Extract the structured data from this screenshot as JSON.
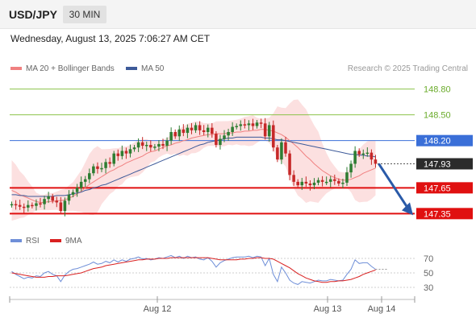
{
  "header": {
    "pair": "USD/JPY",
    "timeframe": "30 MIN",
    "datetime": "Wednesday, August 13, 2025 7:06:27 AM CET",
    "source": "Research © 2025 Trading Central"
  },
  "legend": {
    "ma20": "MA 20 + Bollinger Bands",
    "ma50": "MA 50",
    "rsi": "RSI",
    "rsi_ma": "9MA"
  },
  "colors": {
    "candle_up": "#2e7d32",
    "candle_down": "#c62828",
    "bollinger_fill": "#fbd5d5",
    "ma20": "#f08080",
    "ma50": "#3d5a99",
    "resistance": "#8bc34a",
    "pivot": "#3a6fd8",
    "support": "#e01010",
    "price_tag": "#2b2b2b",
    "forecast_arrow": "#2a5aa8",
    "rsi": "#6f8fd8",
    "rsi_ma": "#d92020"
  },
  "chart_data": [
    {
      "type": "candlestick",
      "ylim": [
        147.25,
        148.9
      ],
      "x_labels": [
        "Aug 12",
        "Aug 13",
        "Aug 14"
      ],
      "levels": [
        {
          "label": "148.80",
          "value": 148.8,
          "kind": "resistance"
        },
        {
          "label": "148.50",
          "value": 148.5,
          "kind": "resistance"
        },
        {
          "label": "148.20",
          "value": 148.2,
          "kind": "pivot"
        },
        {
          "label": "147.93",
          "value": 147.93,
          "kind": "last_price"
        },
        {
          "label": "147.65",
          "value": 147.65,
          "kind": "support"
        },
        {
          "label": "147.35",
          "value": 147.35,
          "kind": "support"
        }
      ],
      "forecast_target": 147.35,
      "close": [
        147.46,
        147.45,
        147.43,
        147.42,
        147.45,
        147.44,
        147.47,
        147.46,
        147.52,
        147.55,
        147.5,
        147.48,
        147.38,
        147.5,
        147.57,
        147.6,
        147.65,
        147.72,
        147.75,
        147.82,
        147.9,
        147.87,
        147.88,
        147.95,
        147.93,
        148.05,
        148.02,
        148.08,
        148.05,
        148.1,
        148.12,
        148.18,
        148.14,
        148.15,
        148.12,
        148.13,
        148.16,
        148.14,
        148.2,
        148.3,
        148.25,
        148.33,
        148.29,
        148.35,
        148.32,
        148.38,
        148.32,
        148.3,
        148.35,
        148.28,
        148.15,
        148.22,
        148.26,
        148.3,
        148.36,
        148.37,
        148.39,
        148.38,
        148.4,
        148.37,
        148.41,
        148.4,
        148.25,
        148.38,
        148.12,
        147.98,
        148.18,
        148.05,
        147.8,
        147.72,
        147.68,
        147.72,
        147.7,
        147.68,
        147.71,
        147.74,
        147.72,
        147.72,
        147.75,
        147.73,
        147.7,
        147.71,
        147.83,
        147.93,
        148.08,
        148.04,
        148.05,
        148.06,
        147.98,
        147.93
      ],
      "open": [
        147.45,
        147.46,
        147.45,
        147.43,
        147.42,
        147.45,
        147.44,
        147.47,
        147.46,
        147.52,
        147.55,
        147.5,
        147.48,
        147.38,
        147.5,
        147.57,
        147.6,
        147.65,
        147.72,
        147.75,
        147.82,
        147.9,
        147.87,
        147.88,
        147.95,
        147.93,
        148.05,
        148.02,
        148.08,
        148.05,
        148.1,
        148.12,
        148.18,
        148.14,
        148.15,
        148.12,
        148.13,
        148.16,
        148.14,
        148.2,
        148.3,
        148.25,
        148.33,
        148.29,
        148.35,
        148.32,
        148.38,
        148.32,
        148.3,
        148.35,
        148.28,
        148.15,
        148.22,
        148.26,
        148.3,
        148.36,
        148.37,
        148.39,
        148.38,
        148.4,
        148.37,
        148.41,
        148.4,
        148.25,
        148.38,
        148.12,
        147.98,
        148.18,
        148.05,
        147.8,
        147.72,
        147.68,
        147.72,
        147.7,
        147.68,
        147.71,
        147.74,
        147.72,
        147.72,
        147.75,
        147.73,
        147.7,
        147.71,
        147.83,
        147.93,
        148.08,
        148.04,
        148.05,
        148.06,
        147.98
      ],
      "ma20": [
        147.62,
        147.6,
        147.57,
        147.55,
        147.53,
        147.51,
        147.49,
        147.48,
        147.48,
        147.49,
        147.49,
        147.5,
        147.5,
        147.51,
        147.53,
        147.55,
        147.58,
        147.61,
        147.65,
        147.69,
        147.72,
        147.75,
        147.78,
        147.81,
        147.84,
        147.86,
        147.89,
        147.91,
        147.94,
        147.96,
        147.98,
        148,
        148.02,
        148.05,
        148.07,
        148.08,
        148.1,
        148.12,
        148.14,
        148.15,
        148.17,
        148.18,
        148.2,
        148.21,
        148.23,
        148.24,
        148.25,
        148.26,
        148.27,
        148.27,
        148.28,
        148.28,
        148.28,
        148.29,
        148.29,
        148.3,
        148.3,
        148.31,
        148.31,
        148.32,
        148.32,
        148.33,
        148.33,
        148.32,
        148.31,
        148.29,
        148.27,
        148.24,
        148.2,
        148.16,
        148.12,
        148.07,
        148.02,
        147.98,
        147.93,
        147.89,
        147.85,
        147.82,
        147.79,
        147.77,
        147.75,
        147.74,
        147.74,
        147.75,
        147.77,
        147.79,
        147.82,
        147.84,
        147.86,
        147.88
      ],
      "ma50": [
        147.57,
        147.57,
        147.56,
        147.56,
        147.55,
        147.55,
        147.55,
        147.55,
        147.55,
        147.55,
        147.55,
        147.56,
        147.56,
        147.56,
        147.57,
        147.58,
        147.59,
        147.6,
        147.62,
        147.63,
        147.65,
        147.66,
        147.68,
        147.69,
        147.71,
        147.73,
        147.75,
        147.77,
        147.79,
        147.81,
        147.83,
        147.85,
        147.87,
        147.89,
        147.91,
        147.93,
        147.95,
        147.97,
        147.99,
        148.01,
        148.03,
        148.05,
        148.07,
        148.09,
        148.11,
        148.13,
        148.15,
        148.16,
        148.18,
        148.19,
        148.2,
        148.21,
        148.22,
        148.23,
        148.23,
        148.24,
        148.24,
        148.24,
        148.24,
        148.24,
        148.24,
        148.24,
        148.23,
        148.23,
        148.22,
        148.21,
        148.21,
        148.2,
        148.19,
        148.18,
        148.17,
        148.16,
        148.15,
        148.14,
        148.13,
        148.12,
        148.11,
        148.1,
        148.09,
        148.08,
        148.07,
        148.06,
        148.05,
        148.04,
        148.04,
        148.03,
        148.03,
        148.02,
        148.02,
        148.01
      ]
    },
    {
      "type": "line",
      "ylim": [
        20,
        80
      ],
      "y_ticks": [
        "70",
        "50",
        "30"
      ],
      "series": [
        {
          "name": "RSI",
          "values": [
            52,
            48,
            45,
            42,
            44,
            43,
            46,
            45,
            50,
            52,
            48,
            46,
            38,
            47,
            52,
            55,
            56,
            58,
            60,
            62,
            65,
            62,
            63,
            66,
            64,
            68,
            65,
            68,
            66,
            69,
            70,
            72,
            69,
            70,
            68,
            69,
            71,
            70,
            72,
            74,
            71,
            73,
            70,
            73,
            71,
            72,
            69,
            68,
            71,
            66,
            58,
            64,
            67,
            69,
            71,
            72,
            72,
            72,
            73,
            71,
            73,
            72,
            60,
            70,
            48,
            38,
            58,
            50,
            40,
            36,
            34,
            38,
            37,
            36,
            38,
            40,
            39,
            39,
            41,
            40,
            39,
            40,
            48,
            55,
            68,
            63,
            64,
            64,
            59,
            55
          ]
        },
        {
          "name": "9MA",
          "values": [
            50,
            49,
            48,
            47,
            46,
            45,
            44,
            44,
            44,
            45,
            45,
            46,
            46,
            46,
            47,
            48,
            49,
            50,
            52,
            54,
            56,
            57,
            58,
            60,
            61,
            62,
            63,
            64,
            65,
            66,
            67,
            68,
            68,
            69,
            69,
            69,
            70,
            70,
            70,
            71,
            71,
            71,
            71,
            71,
            71,
            71,
            71,
            71,
            71,
            70,
            69,
            68,
            68,
            68,
            68,
            68,
            69,
            69,
            70,
            70,
            71,
            71,
            70,
            70,
            69,
            66,
            63,
            60,
            57,
            53,
            49,
            46,
            43,
            41,
            39,
            38,
            37,
            37,
            38,
            38,
            39,
            39,
            40,
            41,
            43,
            45,
            48,
            50,
            52,
            54
          ]
        }
      ]
    }
  ]
}
